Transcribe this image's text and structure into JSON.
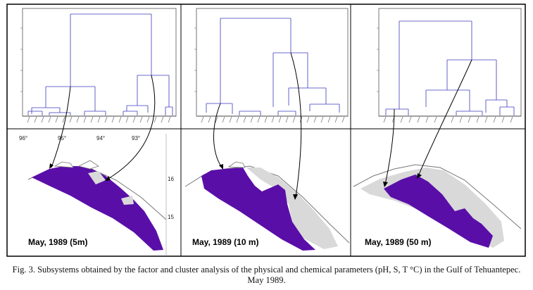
{
  "panels": [
    {
      "id": "5m",
      "label": "May, 1989 (5m)"
    },
    {
      "id": "10m",
      "label": "May, 1989 (10 m)"
    },
    {
      "id": "50m",
      "label": "May, 1989 (50 m)"
    }
  ],
  "longitudes": [
    "96°",
    "95°",
    "94°",
    "93°"
  ],
  "latitudes": [
    "16",
    "15"
  ],
  "caption": "Fig. 3. Subsystems obtained by the factor and cluster analysis of the physical and chemical parameters (pH, S, T °C) in the Gulf of Tehuantepec. May 1989.",
  "colors": {
    "cluster_a": "#5a0ea8",
    "cluster_b": "#d9d9d9",
    "dendrogram": "#3b3bbd",
    "frame": "#000000"
  }
}
